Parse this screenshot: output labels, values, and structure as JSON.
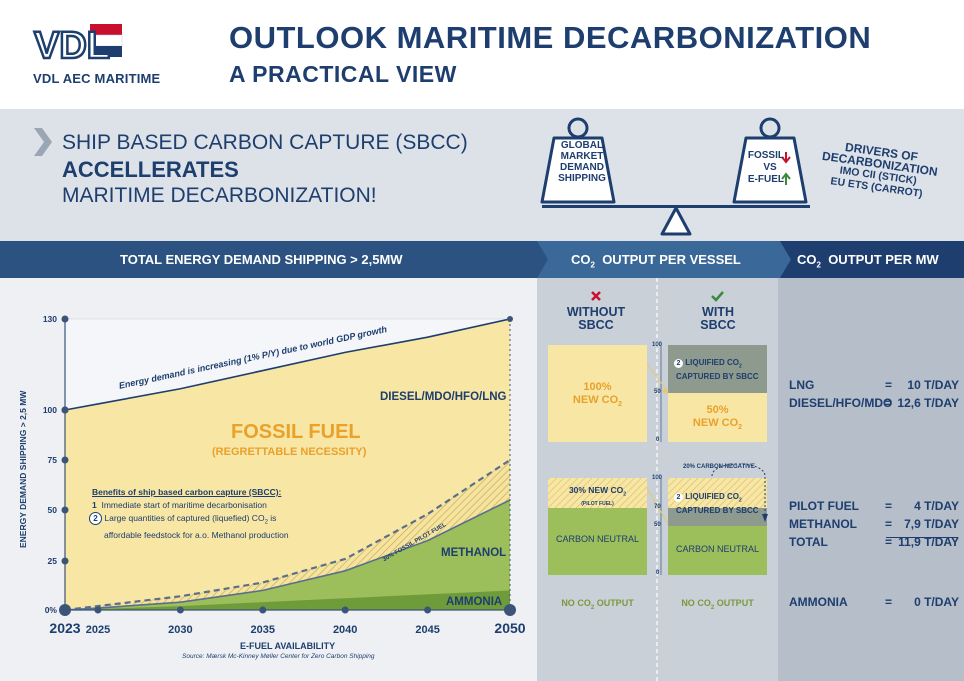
{
  "header": {
    "logo_text": "VDL",
    "brand": "VDL AEC MARITIME",
    "title_line1": "OUTLOOK MARITIME DECARBONIZATION",
    "title_line2": "A PRACTICAL VIEW"
  },
  "headline": {
    "line1": "SHIP BASED CARBON CAPTURE (SBCC)",
    "line2": "ACCELLERATES",
    "line3": "MARITIME DECARBONIZATION!"
  },
  "scale": {
    "left_weight": [
      "GLOBAL",
      "MARKET",
      "DEMAND",
      "SHIPPING"
    ],
    "right_weight": {
      "fossil": "FOSSIL",
      "vs": "VS",
      "efuel": "E-FUEL"
    },
    "drivers_title_1": "DRIVERS OF",
    "drivers_title_2": "DECARBONIZATION",
    "drivers_sub1": "IMO CII (STICK)",
    "drivers_sub2": "EU ETS (CARROT)"
  },
  "bar": {
    "left": "TOTAL ENERGY DEMAND SHIPPING > 2,5MW",
    "mid_prefix": "CO",
    "mid_sub": "2",
    "mid_suffix": "OUTPUT PER VESSEL",
    "right_prefix": "CO",
    "right_sub": "2",
    "right_suffix": "OUTPUT PER MW"
  },
  "chart_data": {
    "type": "area",
    "ylabel": "ENERGY DEMAND SHIPPING > 2,5 MW",
    "xlabel": "E-FUEL AVAILABILITY",
    "source": "Source: Mærsk Mc-Kinney Møller Center for Zero Carbon Shipping",
    "y_ticks": [
      "130",
      "100",
      "75",
      "50",
      "25",
      "0%"
    ],
    "x_ticks": [
      "2023",
      "2025",
      "2030",
      "2035",
      "2040",
      "2045",
      "2050"
    ],
    "x_values": [
      2023,
      2025,
      2030,
      2035,
      2040,
      2045,
      2050
    ],
    "ylim": [
      0,
      130
    ],
    "series": [
      {
        "name": "Total energy demand",
        "values": [
          100,
          102,
          107,
          113,
          119,
          124,
          130
        ]
      },
      {
        "name": "Methanol",
        "values": [
          0,
          1,
          4,
          10,
          20,
          35,
          55
        ]
      },
      {
        "name": "Ammonia",
        "values": [
          0,
          0.5,
          2,
          4,
          6,
          8,
          10
        ]
      },
      {
        "name": "30% fossil pilot fuel",
        "values": [
          0,
          2,
          7,
          14,
          26,
          48,
          75
        ]
      }
    ],
    "annotations": {
      "growth": "Energy demand is increasing (1% P/Y) due to world GDP growth",
      "fossil": "FOSSIL FUEL",
      "fossil_sub": "(REGRETTABLE NECESSITY)",
      "diesel": "DIESEL/MDO/HFO/LNG",
      "methanol": "METHANOL",
      "ammonia": "AMMONIA",
      "pilot": "30% FOSSIL PILOT FUEL",
      "benefits_title": "Benefits of ship based carbon capture (SBCC):",
      "benefit1_num": "1",
      "benefit1": "Immediate start of maritime decarbonisation",
      "benefit2_num": "2",
      "benefit2a": "Large quantities of captured (liquefied) CO",
      "benefit2a_sub": "2",
      "benefit2a_end": "is",
      "benefit2b": "affordable feedstock for a.o. Methanol production"
    }
  },
  "vessel": {
    "without_1": "WITHOUT",
    "without_2": "SBCC",
    "with_1": "WITH",
    "with_2": "SBCC",
    "box_100_a": "100%",
    "box_100_b": "NEW CO",
    "box_100_sub": "2",
    "scale_top": [
      "100",
      "50",
      "0"
    ],
    "scale_bottom": [
      "100",
      "70",
      "50",
      "0"
    ],
    "liquified_num": "2",
    "liquified_1": "LIQUIFIED CO",
    "liquified_sub": "2",
    "liquified_2": "CAPTURED BY SBCC",
    "box_50_a": "50%",
    "box_50_b": "NEW CO",
    "box_50_sub": "2",
    "carbon_negative": "20% CARBON NEGATIVE",
    "box_30_a": "30% NEW CO",
    "box_30_sub": "2",
    "box_30_b": "(PILOT FUEL)",
    "carbon_neutral": "CARBON NEUTRAL",
    "no_output_a": "NO CO",
    "no_output_sub": "2",
    "no_output_b": "OUTPUT"
  },
  "per_mw": {
    "rows": [
      {
        "label": "LNG",
        "eq": "=",
        "value": "10 T/DAY"
      },
      {
        "label": "DIESEL/HFO/MDO",
        "eq": "=",
        "value": "12,6 T/DAY"
      },
      {
        "label": "PILOT FUEL",
        "eq": "=",
        "value": "4 T/DAY"
      },
      {
        "label": "METHANOL",
        "eq": "=",
        "value": "7,9 T/DAY"
      },
      {
        "label": "TOTAL",
        "eq": "=",
        "value": "11,9 T/DAY"
      },
      {
        "label": "AMMONIA",
        "eq": "=",
        "value": "0 T/DAY"
      }
    ]
  },
  "colors": {
    "navy": "#1d3e6e",
    "bar_blue": "#2b5281",
    "fossil_yellow": "#f8e6a4",
    "methanol_green": "#9cbf5c",
    "ammonia_green": "#6e9c3a",
    "orange": "#e9a12c"
  }
}
